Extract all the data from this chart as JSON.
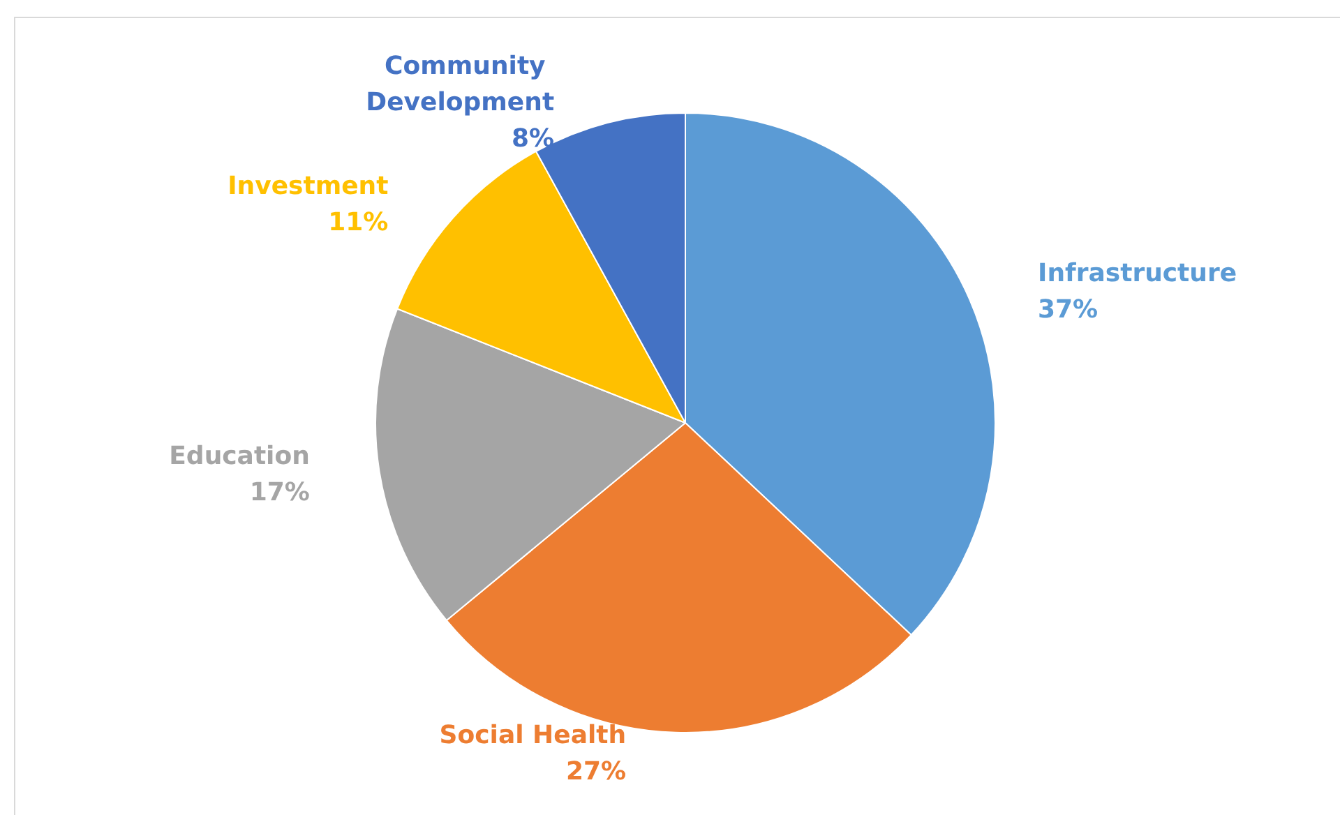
{
  "chart_data": {
    "type": "pie",
    "categories": [
      "Infrastructure",
      "Social Health",
      "Education",
      "Investment",
      "Community Development"
    ],
    "values": [
      37,
      27,
      17,
      11,
      8
    ],
    "value_labels": [
      "37%",
      "27%",
      "17%",
      "11%",
      "8%"
    ],
    "colors": [
      "#5b9bd5",
      "#ed7d31",
      "#a5a5a5",
      "#ffc000",
      "#4472c4"
    ],
    "legend": false
  }
}
